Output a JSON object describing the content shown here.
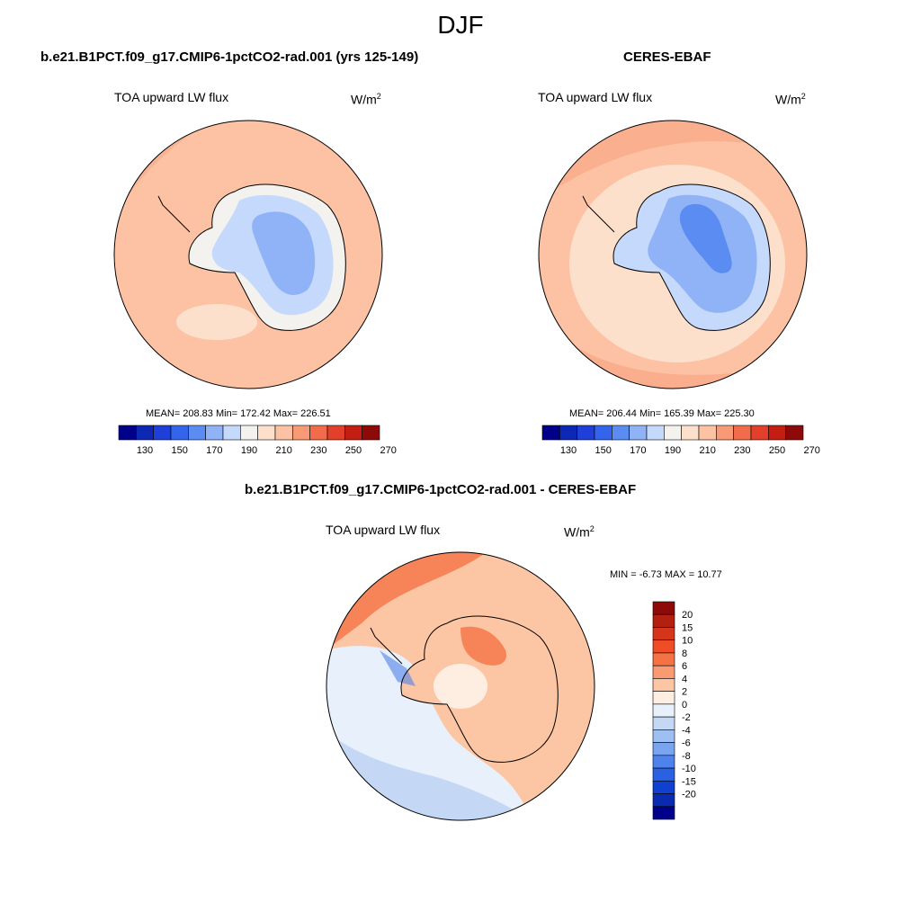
{
  "season_title": "DJF",
  "panels": {
    "model": {
      "case_title": "b.e21.B1PCT.f09_g17.CMIP6-1pctCO2-rad.001 (yrs 125-149)",
      "variable": "TOA upward LW flux",
      "units_base": "W/m",
      "units_exp": "2",
      "stats": "MEAN= 208.83  Min= 172.42  Max= 226.51"
    },
    "obs": {
      "case_title": "CERES-EBAF",
      "variable": "TOA upward LW flux",
      "units_base": "W/m",
      "units_exp": "2",
      "stats": "MEAN= 206.44  Min= 165.39  Max= 225.30"
    },
    "diff": {
      "case_title": "b.e21.B1PCT.f09_g17.CMIP6-1pctCO2-rad.001 - CERES-EBAF",
      "variable": "TOA upward LW flux",
      "units_base": "W/m",
      "units_exp": "2",
      "stats": "MIN =  -6.73 MAX =  10.77"
    }
  },
  "colorbars": {
    "absolute": {
      "colors": [
        "#00008b",
        "#0d28b4",
        "#1e3fd8",
        "#3464eb",
        "#5a8cf2",
        "#8fb3f6",
        "#c4d9fb",
        "#f3f2ef",
        "#fde0cc",
        "#fcc2a3",
        "#f99a77",
        "#f26b4b",
        "#e2402a",
        "#c41e12",
        "#8e0a08"
      ],
      "labels": [
        "130",
        "150",
        "170",
        "190",
        "210",
        "230",
        "250",
        "270"
      ]
    },
    "difference": {
      "colors": [
        "#8e0a08",
        "#b22012",
        "#d5361b",
        "#ee4d25",
        "#f57245",
        "#f99a73",
        "#fcc6a4",
        "#feeee2",
        "#e8f1fb",
        "#c4d8f6",
        "#9ebff2",
        "#7aa4ee",
        "#4f82ea",
        "#2a60e2",
        "#1040d0",
        "#0a2ab0",
        "#00008b"
      ],
      "labels": [
        "20",
        "15",
        "10",
        "8",
        "6",
        "4",
        "2",
        "0",
        "-2",
        "-4",
        "-6",
        "-8",
        "-10",
        "-15",
        "-20"
      ]
    }
  }
}
